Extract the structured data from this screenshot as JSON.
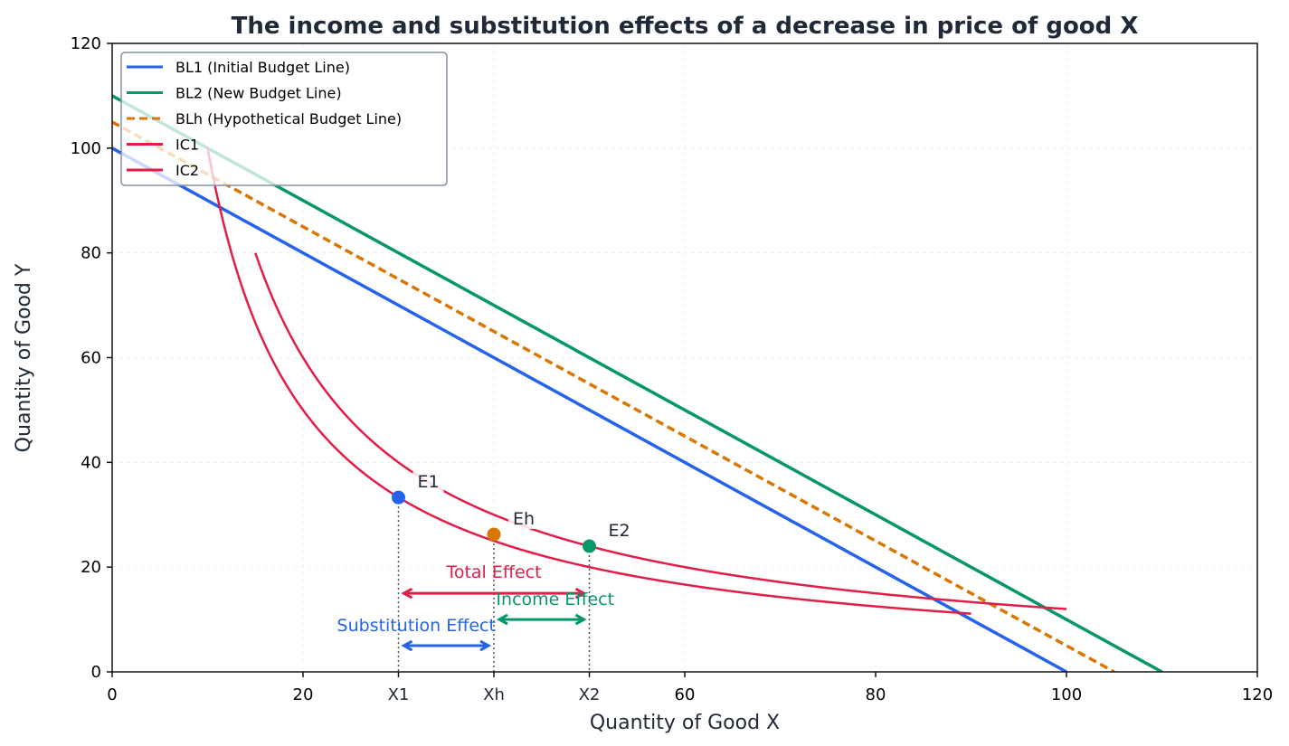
{
  "chart_data": {
    "type": "line",
    "title": "The income and substitution effects of a decrease in price of good X",
    "xlabel": "Quantity of Good X",
    "ylabel": "Quantity of Good Y",
    "xlim": [
      0,
      120
    ],
    "ylim": [
      0,
      120
    ],
    "grid": true,
    "legend_position": "top-left",
    "x_ticks": [
      {
        "value": 0,
        "label": "0"
      },
      {
        "value": 20,
        "label": "20"
      },
      {
        "value": 30,
        "label": "X1"
      },
      {
        "value": 40,
        "label": "Xh"
      },
      {
        "value": 50,
        "label": "X2"
      },
      {
        "value": 60,
        "label": "60"
      },
      {
        "value": 80,
        "label": "80"
      },
      {
        "value": 100,
        "label": "100"
      },
      {
        "value": 120,
        "label": "120"
      }
    ],
    "y_ticks": [
      {
        "value": 0,
        "label": "0"
      },
      {
        "value": 20,
        "label": "20"
      },
      {
        "value": 40,
        "label": "40"
      },
      {
        "value": 60,
        "label": "60"
      },
      {
        "value": 80,
        "label": "80"
      },
      {
        "value": 100,
        "label": "100"
      },
      {
        "value": 120,
        "label": "120"
      }
    ],
    "series": [
      {
        "name": "BL1 (Initial Budget Line)",
        "kind": "line",
        "color": "#2563eb",
        "dashed": false,
        "x": [
          0,
          100
        ],
        "y": [
          100,
          0
        ]
      },
      {
        "name": "BL2 (New Budget Line)",
        "kind": "line",
        "color": "#059669",
        "dashed": false,
        "x": [
          0,
          110
        ],
        "y": [
          110,
          0
        ]
      },
      {
        "name": "BLh (Hypothetical Budget Line)",
        "kind": "line",
        "color": "#d97706",
        "dashed": true,
        "x": [
          0,
          105
        ],
        "y": [
          105,
          0
        ]
      },
      {
        "name": "IC1",
        "kind": "curve",
        "color": "#e11d48",
        "dashed": false,
        "equation": "y = 1000 / x",
        "x_range": [
          10,
          90
        ]
      },
      {
        "name": "IC2",
        "kind": "curve",
        "color": "#e11d48",
        "dashed": false,
        "equation": "y = 1200 / x",
        "x_range": [
          15,
          100
        ]
      }
    ],
    "points": [
      {
        "label": "E1",
        "x": 30,
        "y": 33.3,
        "color": "#2563eb"
      },
      {
        "label": "Eh",
        "x": 40,
        "y": 26.25,
        "color": "#d97706"
      },
      {
        "label": "E2",
        "x": 50,
        "y": 24,
        "color": "#059669"
      }
    ],
    "annotations": [
      {
        "label": "Total Effect",
        "from": 30,
        "to": 50,
        "y": 15,
        "color": "#e11d48"
      },
      {
        "label": "Income Effect",
        "from": 40,
        "to": 50,
        "y": 10,
        "color": "#059669"
      },
      {
        "label": "Substitution Effect",
        "from": 30,
        "to": 40,
        "y": 5,
        "color": "#2563eb"
      }
    ]
  }
}
